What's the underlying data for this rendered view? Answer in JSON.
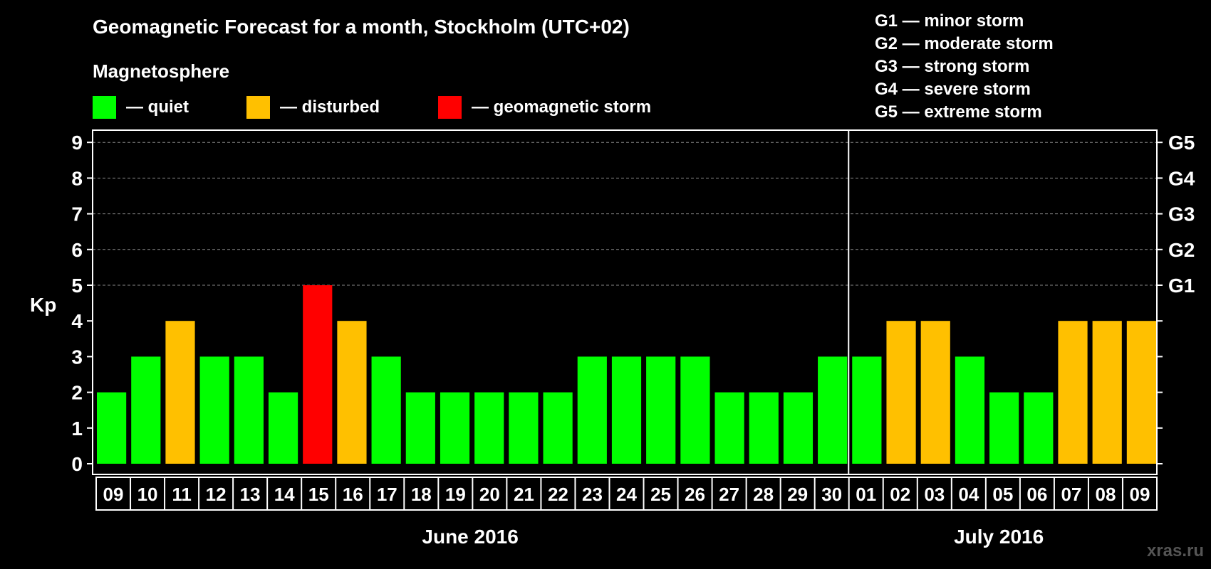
{
  "title": "Geomagnetic Forecast for a month, Stockholm (UTC+02)",
  "legend": {
    "heading": "Magnetosphere",
    "items": [
      {
        "label": "— quiet",
        "color": "#00ff00"
      },
      {
        "label": "— disturbed",
        "color": "#ffc000"
      },
      {
        "label": "— geomagnetic storm",
        "color": "#ff0000"
      }
    ]
  },
  "storm_scale": [
    "G1 — minor storm",
    "G2 — moderate storm",
    "G3 — strong storm",
    "G4 — severe storm",
    "G5 — extreme storm"
  ],
  "watermark": "xras.ru",
  "chart_data": {
    "type": "bar",
    "ylabel": "Kp",
    "ylim": [
      0,
      9
    ],
    "yticks": [
      0,
      1,
      2,
      3,
      4,
      5,
      6,
      7,
      8,
      9
    ],
    "right_ticks": [
      {
        "value": 5,
        "label": "G1"
      },
      {
        "value": 6,
        "label": "G2"
      },
      {
        "value": 7,
        "label": "G3"
      },
      {
        "value": 8,
        "label": "G4"
      },
      {
        "value": 9,
        "label": "G5"
      }
    ],
    "grid": "dashed horizontal at 5–9",
    "categories": [
      "09",
      "10",
      "11",
      "12",
      "13",
      "14",
      "15",
      "16",
      "17",
      "18",
      "19",
      "20",
      "21",
      "22",
      "23",
      "24",
      "25",
      "26",
      "27",
      "28",
      "29",
      "30",
      "01",
      "02",
      "03",
      "04",
      "05",
      "06",
      "07",
      "08",
      "09"
    ],
    "values": [
      2,
      3,
      4,
      3,
      3,
      2,
      5,
      4,
      3,
      2,
      2,
      2,
      2,
      2,
      3,
      3,
      3,
      3,
      2,
      2,
      2,
      3,
      3,
      4,
      4,
      3,
      2,
      2,
      4,
      4,
      4
    ],
    "colors": {
      "quiet": "#00ff00",
      "disturbed": "#ffc000",
      "storm": "#ff0000"
    },
    "months": [
      {
        "label": "June 2016",
        "start": 0,
        "end": 21
      },
      {
        "label": "July 2016",
        "start": 22,
        "end": 30
      }
    ]
  }
}
